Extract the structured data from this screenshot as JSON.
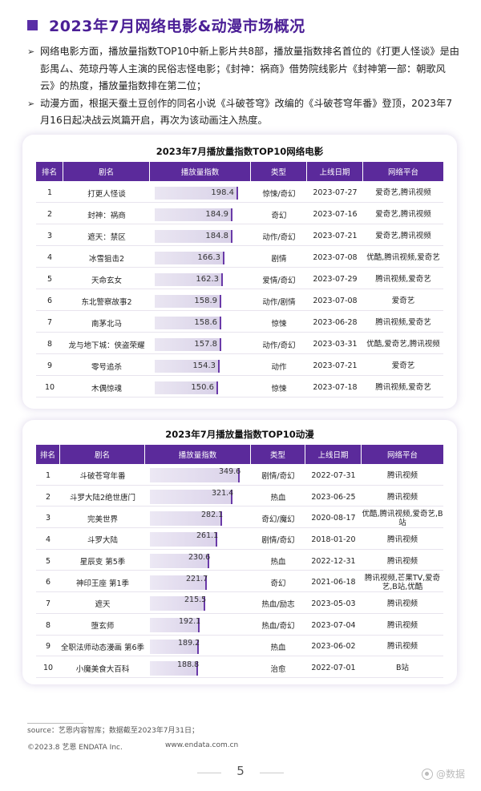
{
  "page": {
    "title": "2023年7月网络电影&动漫市场概况",
    "bullets": [
      "网络电影方面，播放量指数TOP10中新上影片共8部，播放量指数排名首位的《打更人怪谈》是由彭禺厶、苑琼丹等人主演的民俗志怪电影；《封神：祸商》借势院线影片《封神第一部：朝歌风云》的热度，播放量指数排在第二位；",
      "动漫方面，根据天蚕土豆创作的同名小说《斗破苍穹》改编的《斗破苍穹年番》登顶，2023年7月16日起决战云岚篇开启，再次为该动画注入热度。"
    ],
    "bullet_mark": "➢"
  },
  "table1": {
    "title": "2023年7月播放量指数TOP10网络电影",
    "headers": [
      "排名",
      "剧名",
      "播放量指数",
      "类型",
      "上线日期",
      "网络平台"
    ],
    "rows": [
      {
        "rank": "1",
        "name": "打更人怪谈",
        "index": "198.4",
        "value": 198.4,
        "genre": "惊悚/奇幻",
        "date": "2023-07-27",
        "platform": "爱奇艺,腾讯视频"
      },
      {
        "rank": "2",
        "name": "封神：祸商",
        "index": "184.9",
        "value": 184.9,
        "genre": "奇幻",
        "date": "2023-07-16",
        "platform": "爱奇艺,腾讯视频"
      },
      {
        "rank": "3",
        "name": "遮天：禁区",
        "index": "184.8",
        "value": 184.8,
        "genre": "动作/奇幻",
        "date": "2023-07-21",
        "platform": "爱奇艺,腾讯视频"
      },
      {
        "rank": "4",
        "name": "冰雪狙击2",
        "index": "166.3",
        "value": 166.3,
        "genre": "剧情",
        "date": "2023-07-08",
        "platform": "优酷,腾讯视频,爱奇艺"
      },
      {
        "rank": "5",
        "name": "天命玄女",
        "index": "162.3",
        "value": 162.3,
        "genre": "爱情/奇幻",
        "date": "2023-07-29",
        "platform": "腾讯视频,爱奇艺"
      },
      {
        "rank": "6",
        "name": "东北警察故事2",
        "index": "158.9",
        "value": 158.9,
        "genre": "动作/剧情",
        "date": "2023-07-08",
        "platform": "爱奇艺"
      },
      {
        "rank": "7",
        "name": "南茅北马",
        "index": "158.6",
        "value": 158.6,
        "genre": "惊悚",
        "date": "2023-06-28",
        "platform": "腾讯视频,爱奇艺"
      },
      {
        "rank": "8",
        "name": "龙与地下城：侠盗荣耀",
        "index": "157.8",
        "value": 157.8,
        "genre": "动作/奇幻",
        "date": "2023-03-31",
        "platform": "优酷,爱奇艺,腾讯视频"
      },
      {
        "rank": "9",
        "name": "零号追杀",
        "index": "154.3",
        "value": 154.3,
        "genre": "动作",
        "date": "2023-07-21",
        "platform": "爱奇艺"
      },
      {
        "rank": "10",
        "name": "木偶惊魂",
        "index": "150.6",
        "value": 150.6,
        "genre": "惊悚",
        "date": "2023-07-18",
        "platform": "腾讯视频,爱奇艺"
      }
    ]
  },
  "table2": {
    "title": "2023年7月播放量指数TOP10动漫",
    "headers": [
      "排名",
      "剧名",
      "播放量指数",
      "类型",
      "上线日期",
      "网络平台"
    ],
    "rows": [
      {
        "rank": "1",
        "name": "斗破苍穹年番",
        "index": "349.6",
        "value": 349.6,
        "genre": "剧情/奇幻",
        "date": "2022-07-31",
        "platform": "腾讯视频"
      },
      {
        "rank": "2",
        "name": "斗罗大陆2绝世唐门",
        "index": "321.4",
        "value": 321.4,
        "genre": "热血",
        "date": "2023-06-25",
        "platform": "腾讯视频"
      },
      {
        "rank": "3",
        "name": "完美世界",
        "index": "282.1",
        "value": 282.1,
        "genre": "奇幻/魔幻",
        "date": "2020-08-17",
        "platform": "优酷,腾讯视频,爱奇艺,B站"
      },
      {
        "rank": "4",
        "name": "斗罗大陆",
        "index": "261.1",
        "value": 261.1,
        "genre": "剧情/奇幻",
        "date": "2018-01-20",
        "platform": "腾讯视频"
      },
      {
        "rank": "5",
        "name": "星辰变 第5季",
        "index": "230.6",
        "value": 230.6,
        "genre": "热血",
        "date": "2022-12-31",
        "platform": "腾讯视频"
      },
      {
        "rank": "6",
        "name": "神印王座 第1季",
        "index": "221.7",
        "value": 221.7,
        "genre": "奇幻",
        "date": "2021-06-18",
        "platform": "腾讯视频,芒果TV,爱奇艺,B站,优酷"
      },
      {
        "rank": "7",
        "name": "遮天",
        "index": "215.5",
        "value": 215.5,
        "genre": "热血/励志",
        "date": "2023-05-03",
        "platform": "腾讯视频"
      },
      {
        "rank": "8",
        "name": "堕玄师",
        "index": "192.1",
        "value": 192.1,
        "genre": "热血/奇幻",
        "date": "2023-07-04",
        "platform": "腾讯视频"
      },
      {
        "rank": "9",
        "name": "全职法师动态漫画 第6季",
        "index": "189.2",
        "value": 189.2,
        "genre": "热血",
        "date": "2023-06-02",
        "platform": "腾讯视频"
      },
      {
        "rank": "10",
        "name": "小魔美食大百科",
        "index": "188.8",
        "value": 188.8,
        "genre": "治愈",
        "date": "2022-07-01",
        "platform": "B站"
      }
    ]
  },
  "footer": {
    "source": "source：艺恩内容智库；数据截至2023年7月31日；",
    "copyright": "©2023.8 艺恩 ENDATA Inc.",
    "site": "www.endata.com.cn",
    "page_number": "5",
    "watermark": "@数据"
  }
}
